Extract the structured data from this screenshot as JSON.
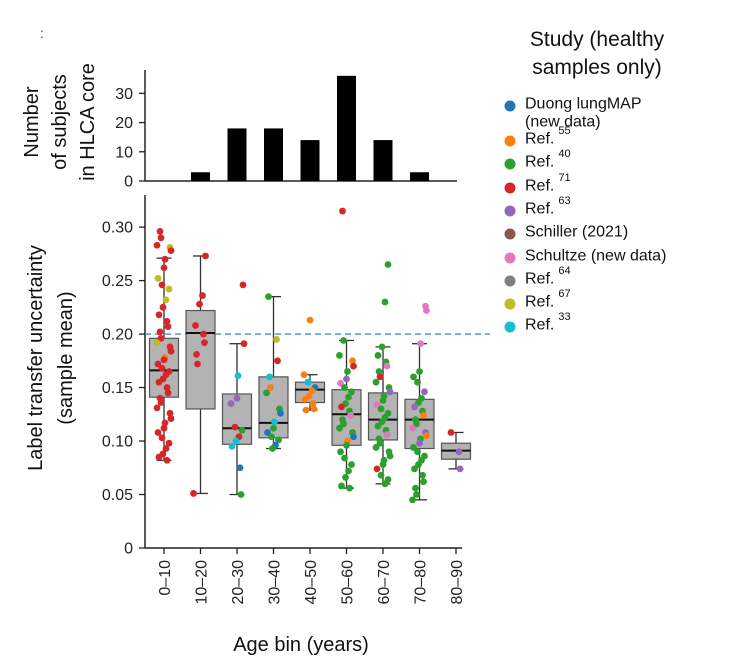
{
  "panel_marker": ":",
  "colors": {
    "bar": "#000000",
    "box_fill": "#b3b3b3",
    "box_edge": "#555555",
    "axis": "#222222",
    "ref_line": "#3a8fcf"
  },
  "chart_data": [
    {
      "type": "bar",
      "title": "",
      "xlabel": "",
      "ylabel_lines": [
        "Number",
        "of subjects",
        "in HLCA core"
      ],
      "categories": [
        "0–10",
        "10–20",
        "20–30",
        "30–40",
        "40–50",
        "50–60",
        "60–70",
        "70–80",
        "80–90"
      ],
      "values": [
        0,
        3,
        18,
        18,
        14,
        36,
        14,
        3,
        0
      ],
      "ylim": [
        0,
        38
      ],
      "yticks": [
        0,
        10,
        20,
        30
      ]
    },
    {
      "type": "box",
      "ylabel_lines": [
        "Label transfer uncertainty",
        "(sample mean)"
      ],
      "xlabel": "Age bin (years)",
      "categories": [
        "0–10",
        "10–20",
        "20–30",
        "30–40",
        "40–50",
        "50–60",
        "60–70",
        "70–80",
        "80–90"
      ],
      "ylim": [
        0,
        0.33
      ],
      "yticks": [
        0,
        0.05,
        0.1,
        0.15,
        0.2,
        0.25,
        0.3
      ],
      "ytick_labels": [
        "0",
        "0.05",
        "0.10",
        "0.15",
        "0.20",
        "0.25",
        "0.30"
      ],
      "reference_line": 0.2,
      "boxes": [
        {
          "q1": 0.141,
          "median": 0.166,
          "q3": 0.196,
          "whisker_low": 0.082,
          "whisker_high": 0.271
        },
        {
          "q1": 0.13,
          "median": 0.201,
          "q3": 0.222,
          "whisker_low": 0.051,
          "whisker_high": 0.273
        },
        {
          "q1": 0.097,
          "median": 0.112,
          "q3": 0.144,
          "whisker_low": 0.05,
          "whisker_high": 0.191
        },
        {
          "q1": 0.103,
          "median": 0.117,
          "q3": 0.16,
          "whisker_low": 0.093,
          "whisker_high": 0.235
        },
        {
          "q1": 0.136,
          "median": 0.148,
          "q3": 0.155,
          "whisker_low": 0.129,
          "whisker_high": 0.162
        },
        {
          "q1": 0.096,
          "median": 0.125,
          "q3": 0.148,
          "whisker_low": 0.056,
          "whisker_high": 0.194
        },
        {
          "q1": 0.101,
          "median": 0.12,
          "q3": 0.145,
          "whisker_low": 0.06,
          "whisker_high": 0.188
        },
        {
          "q1": 0.093,
          "median": 0.12,
          "q3": 0.139,
          "whisker_low": 0.045,
          "whisker_high": 0.191
        },
        {
          "q1": 0.083,
          "median": 0.091,
          "q3": 0.098,
          "whisker_low": 0.074,
          "whisker_high": 0.108
        }
      ],
      "points": [
        [
          [
            0.296,
            "r"
          ],
          [
            0.29,
            "r"
          ],
          [
            0.283,
            "r"
          ],
          [
            0.281,
            "y"
          ],
          [
            0.278,
            "r"
          ],
          [
            0.27,
            "r"
          ],
          [
            0.262,
            "r"
          ],
          [
            0.252,
            "y"
          ],
          [
            0.246,
            "r"
          ],
          [
            0.242,
            "y"
          ],
          [
            0.232,
            "y"
          ],
          [
            0.225,
            "r"
          ],
          [
            0.218,
            "r"
          ],
          [
            0.212,
            "r"
          ],
          [
            0.207,
            "r"
          ],
          [
            0.202,
            "r"
          ],
          [
            0.196,
            "r"
          ],
          [
            0.192,
            "y"
          ],
          [
            0.188,
            "r"
          ],
          [
            0.184,
            "r"
          ],
          [
            0.178,
            "o"
          ],
          [
            0.176,
            "r"
          ],
          [
            0.172,
            "r"
          ],
          [
            0.168,
            "r"
          ],
          [
            0.165,
            "r"
          ],
          [
            0.162,
            "r"
          ],
          [
            0.158,
            "r"
          ],
          [
            0.155,
            "r"
          ],
          [
            0.15,
            "r"
          ],
          [
            0.145,
            "r"
          ],
          [
            0.14,
            "r"
          ],
          [
            0.136,
            "r"
          ],
          [
            0.131,
            "r"
          ],
          [
            0.126,
            "r"
          ],
          [
            0.121,
            "r"
          ],
          [
            0.117,
            "r"
          ],
          [
            0.112,
            "r"
          ],
          [
            0.108,
            "r"
          ],
          [
            0.103,
            "r"
          ],
          [
            0.098,
            "r"
          ],
          [
            0.093,
            "r"
          ],
          [
            0.088,
            "r"
          ],
          [
            0.085,
            "r"
          ],
          [
            0.082,
            "r"
          ]
        ],
        [
          [
            0.273,
            "r"
          ],
          [
            0.236,
            "r"
          ],
          [
            0.228,
            "r"
          ],
          [
            0.208,
            "r"
          ],
          [
            0.2,
            "r"
          ],
          [
            0.192,
            "r"
          ],
          [
            0.181,
            "r"
          ],
          [
            0.172,
            "r"
          ],
          [
            0.051,
            "r"
          ]
        ],
        [
          [
            0.246,
            "r"
          ],
          [
            0.191,
            "r"
          ],
          [
            0.161,
            "c"
          ],
          [
            0.14,
            "p"
          ],
          [
            0.135,
            "p"
          ],
          [
            0.113,
            "r"
          ],
          [
            0.11,
            "g"
          ],
          [
            0.104,
            "r"
          ],
          [
            0.1,
            "c"
          ],
          [
            0.095,
            "c"
          ],
          [
            0.075,
            "b"
          ],
          [
            0.05,
            "g"
          ]
        ],
        [
          [
            0.235,
            "g"
          ],
          [
            0.195,
            "y"
          ],
          [
            0.175,
            "r"
          ],
          [
            0.16,
            "c"
          ],
          [
            0.15,
            "o"
          ],
          [
            0.145,
            "g"
          ],
          [
            0.13,
            "g"
          ],
          [
            0.126,
            "b"
          ],
          [
            0.118,
            "c"
          ],
          [
            0.112,
            "g"
          ],
          [
            0.108,
            "b"
          ],
          [
            0.104,
            "g"
          ],
          [
            0.101,
            "g"
          ],
          [
            0.096,
            "b"
          ],
          [
            0.093,
            "g"
          ]
        ],
        [
          [
            0.213,
            "o"
          ],
          [
            0.162,
            "o"
          ],
          [
            0.155,
            "c"
          ],
          [
            0.15,
            "b"
          ],
          [
            0.147,
            "o"
          ],
          [
            0.142,
            "o"
          ],
          [
            0.139,
            "o"
          ],
          [
            0.135,
            "o"
          ],
          [
            0.13,
            "o"
          ],
          [
            0.129,
            "o"
          ]
        ],
        [
          [
            0.315,
            "r"
          ],
          [
            0.194,
            "g"
          ],
          [
            0.18,
            "g"
          ],
          [
            0.175,
            "o"
          ],
          [
            0.17,
            "r"
          ],
          [
            0.165,
            "g"
          ],
          [
            0.158,
            "p"
          ],
          [
            0.154,
            "m"
          ],
          [
            0.15,
            "g"
          ],
          [
            0.146,
            "g"
          ],
          [
            0.141,
            "g"
          ],
          [
            0.135,
            "g"
          ],
          [
            0.132,
            "r"
          ],
          [
            0.128,
            "g"
          ],
          [
            0.124,
            "m"
          ],
          [
            0.12,
            "g"
          ],
          [
            0.116,
            "g"
          ],
          [
            0.112,
            "g"
          ],
          [
            0.108,
            "g"
          ],
          [
            0.104,
            "b"
          ],
          [
            0.1,
            "o"
          ],
          [
            0.096,
            "g"
          ],
          [
            0.09,
            "g"
          ],
          [
            0.084,
            "g"
          ],
          [
            0.078,
            "g"
          ],
          [
            0.072,
            "g"
          ],
          [
            0.066,
            "g"
          ],
          [
            0.058,
            "g"
          ],
          [
            0.056,
            "g"
          ]
        ],
        [
          [
            0.265,
            "g"
          ],
          [
            0.23,
            "g"
          ],
          [
            0.188,
            "g"
          ],
          [
            0.18,
            "g"
          ],
          [
            0.174,
            "g"
          ],
          [
            0.17,
            "m"
          ],
          [
            0.165,
            "g"
          ],
          [
            0.16,
            "r"
          ],
          [
            0.155,
            "g"
          ],
          [
            0.15,
            "g"
          ],
          [
            0.146,
            "p"
          ],
          [
            0.142,
            "g"
          ],
          [
            0.138,
            "g"
          ],
          [
            0.134,
            "m"
          ],
          [
            0.13,
            "g"
          ],
          [
            0.126,
            "g"
          ],
          [
            0.122,
            "g"
          ],
          [
            0.118,
            "g"
          ],
          [
            0.114,
            "g"
          ],
          [
            0.11,
            "g"
          ],
          [
            0.106,
            "m"
          ],
          [
            0.102,
            "g"
          ],
          [
            0.098,
            "g"
          ],
          [
            0.094,
            "g"
          ],
          [
            0.09,
            "g"
          ],
          [
            0.086,
            "g"
          ],
          [
            0.082,
            "g"
          ],
          [
            0.078,
            "g"
          ],
          [
            0.074,
            "r"
          ],
          [
            0.068,
            "g"
          ],
          [
            0.064,
            "g"
          ],
          [
            0.06,
            "g"
          ]
        ],
        [
          [
            0.226,
            "m"
          ],
          [
            0.222,
            "m"
          ],
          [
            0.191,
            "m"
          ],
          [
            0.165,
            "g"
          ],
          [
            0.16,
            "g"
          ],
          [
            0.155,
            "g"
          ],
          [
            0.146,
            "p"
          ],
          [
            0.14,
            "g"
          ],
          [
            0.136,
            "g"
          ],
          [
            0.132,
            "p"
          ],
          [
            0.128,
            "g"
          ],
          [
            0.124,
            "o"
          ],
          [
            0.12,
            "g"
          ],
          [
            0.116,
            "g"
          ],
          [
            0.112,
            "m"
          ],
          [
            0.108,
            "p"
          ],
          [
            0.105,
            "o"
          ],
          [
            0.102,
            "g"
          ],
          [
            0.098,
            "p"
          ],
          [
            0.094,
            "g"
          ],
          [
            0.09,
            "g"
          ],
          [
            0.086,
            "g"
          ],
          [
            0.082,
            "g"
          ],
          [
            0.078,
            "g"
          ],
          [
            0.074,
            "g"
          ],
          [
            0.068,
            "g"
          ],
          [
            0.062,
            "g"
          ],
          [
            0.056,
            "g"
          ],
          [
            0.05,
            "g"
          ],
          [
            0.045,
            "g"
          ]
        ],
        [
          [
            0.108,
            "r"
          ],
          [
            0.09,
            "p"
          ],
          [
            0.074,
            "p"
          ]
        ]
      ]
    }
  ],
  "legend": {
    "title_lines": [
      "Study (healthy",
      "samples only)"
    ],
    "items": [
      {
        "key": "b",
        "label": "Duong lungMAP",
        "label2": "(new data)",
        "sup": "",
        "color": "#1f77b4"
      },
      {
        "key": "o",
        "label": "Ref.",
        "sup": "55",
        "color": "#ff7f0e"
      },
      {
        "key": "g",
        "label": "Ref.",
        "sup": "40",
        "color": "#2ca02c"
      },
      {
        "key": "r",
        "label": "Ref.",
        "sup": "71",
        "color": "#d62728"
      },
      {
        "key": "p",
        "label": "Ref.",
        "sup": "63",
        "color": "#9467bd"
      },
      {
        "key": "s",
        "label": "Schiller (2021)",
        "sup": "",
        "color": "#8c564b"
      },
      {
        "key": "m",
        "label": "Schultze (new data)",
        "sup": "",
        "color": "#e377c2"
      },
      {
        "key": "k",
        "label": "Ref.",
        "sup": "64",
        "color": "#7f7f7f"
      },
      {
        "key": "y",
        "label": "Ref.",
        "sup": "67",
        "color": "#bcbd22"
      },
      {
        "key": "c",
        "label": "Ref.",
        "sup": "33",
        "color": "#17becf"
      }
    ]
  }
}
